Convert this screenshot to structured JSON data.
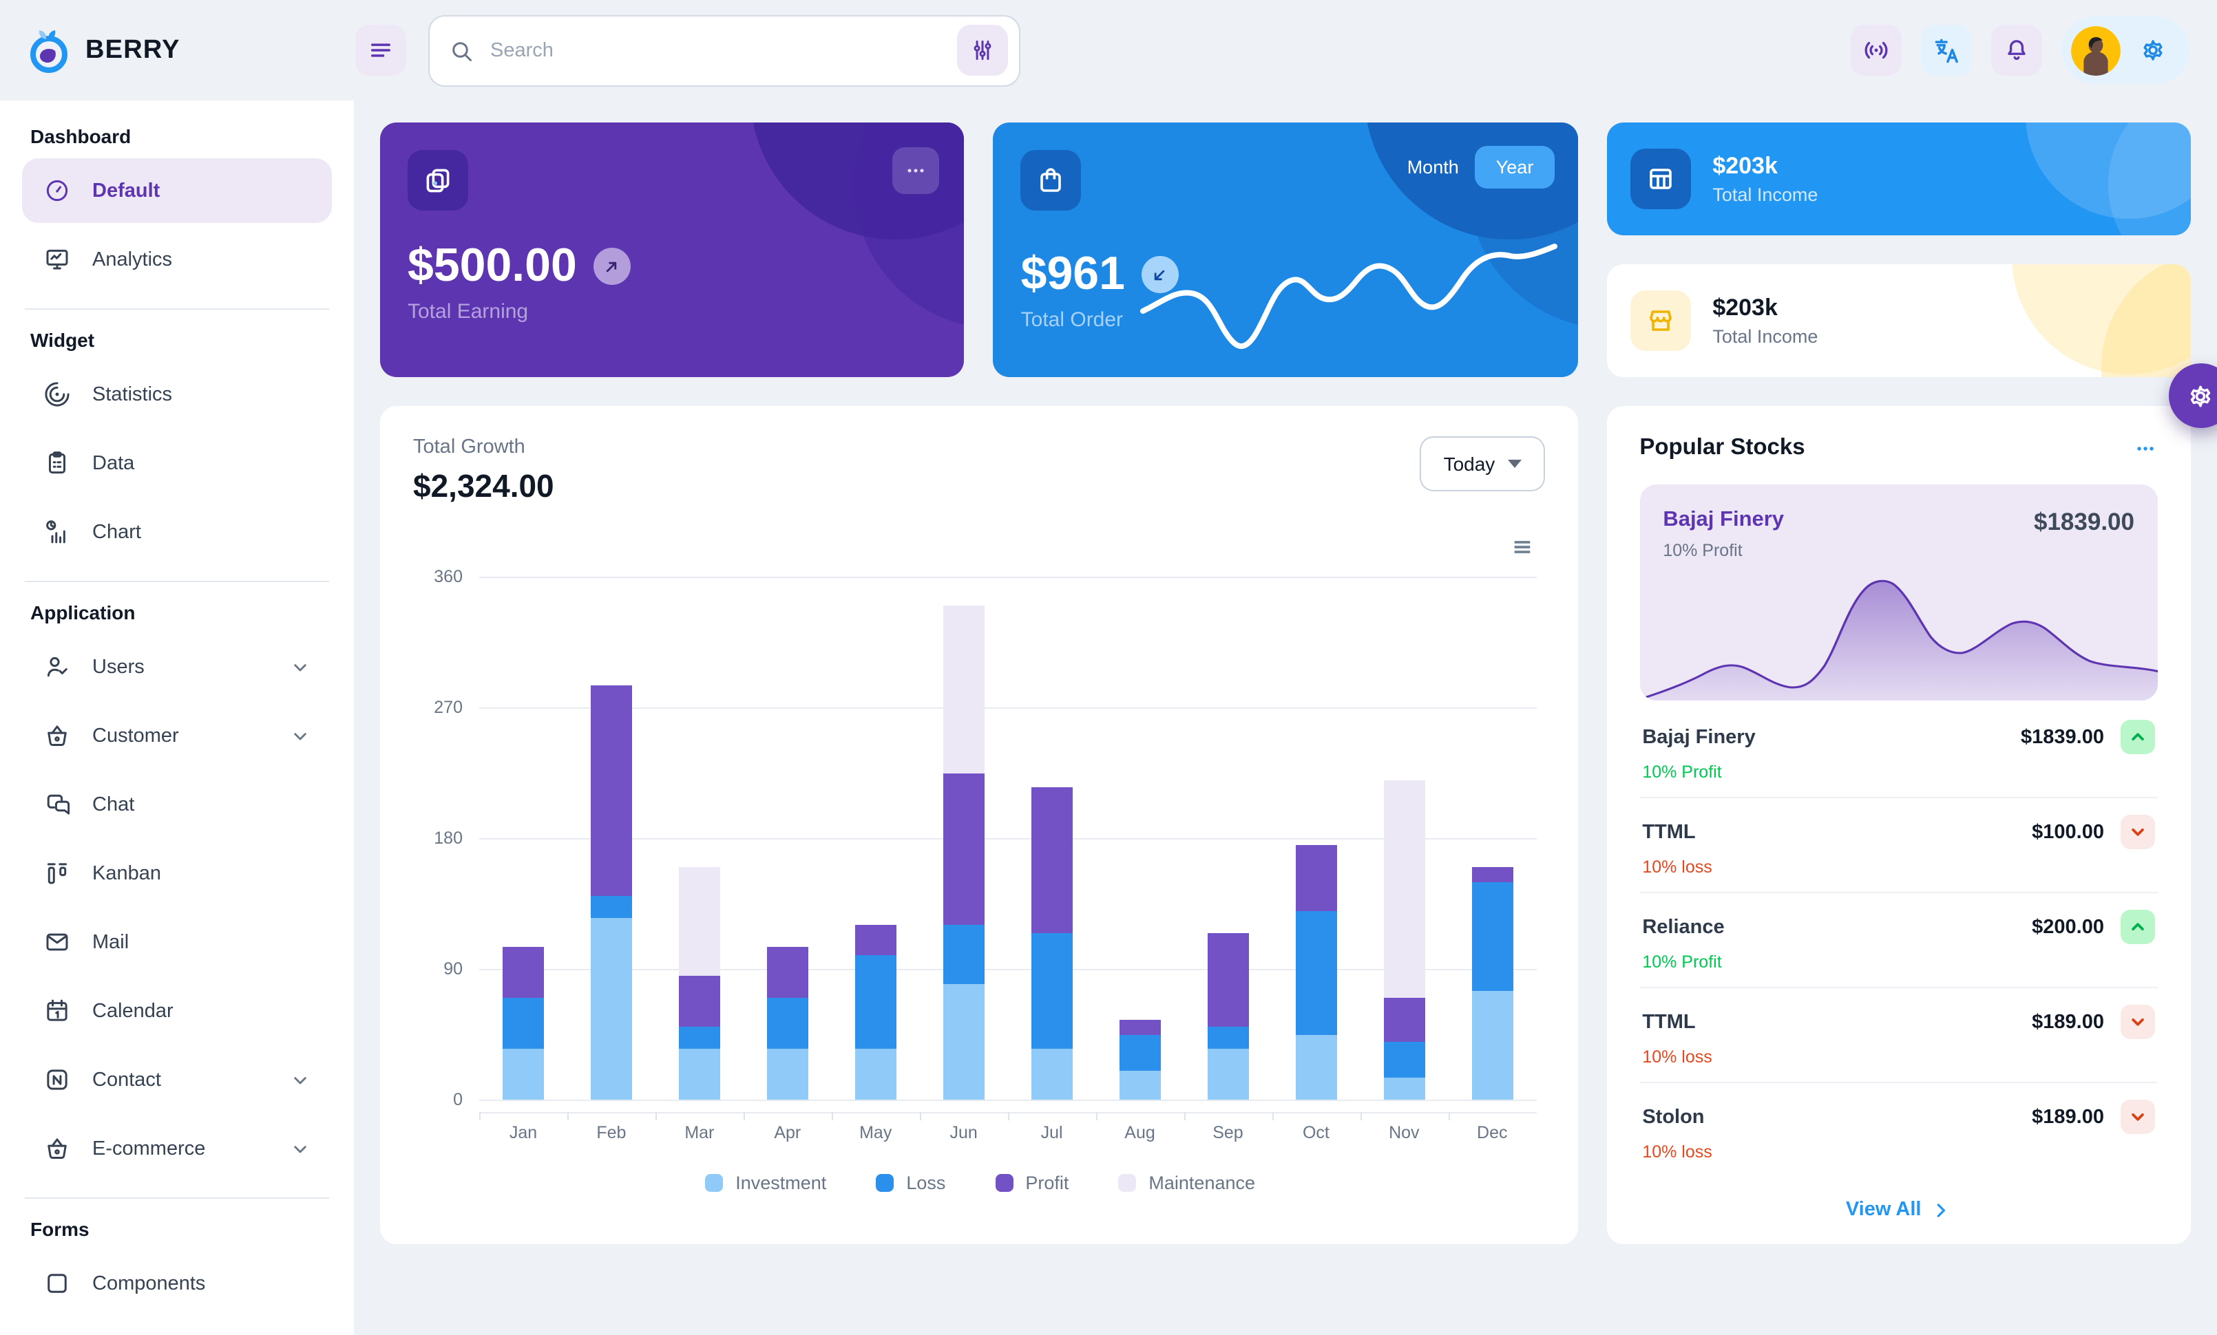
{
  "app": {
    "name": "BERRY"
  },
  "header": {
    "search_placeholder": "Search",
    "icons": [
      "menu-icon",
      "search-icon",
      "filter-icon",
      "broadcast-icon",
      "translate-icon",
      "bell-icon",
      "avatar",
      "gear-icon"
    ]
  },
  "sidebar": {
    "sections": [
      {
        "heading": "Dashboard",
        "items": [
          {
            "label": "Default",
            "icon": "gauge",
            "selected": true
          },
          {
            "label": "Analytics",
            "icon": "monitor"
          }
        ]
      },
      {
        "heading": "Widget",
        "items": [
          {
            "label": "Statistics",
            "icon": "rings"
          },
          {
            "label": "Data",
            "icon": "clipboard"
          },
          {
            "label": "Chart",
            "icon": "chart"
          }
        ]
      },
      {
        "heading": "Application",
        "items": [
          {
            "label": "Users",
            "icon": "user-check",
            "expandable": true
          },
          {
            "label": "Customer",
            "icon": "basket",
            "expandable": true
          },
          {
            "label": "Chat",
            "icon": "chat"
          },
          {
            "label": "Kanban",
            "icon": "kanban"
          },
          {
            "label": "Mail",
            "icon": "mail"
          },
          {
            "label": "Calendar",
            "icon": "calendar"
          },
          {
            "label": "Contact",
            "icon": "nfc",
            "expandable": true
          },
          {
            "label": "E-commerce",
            "icon": "basket",
            "expandable": true
          }
        ]
      },
      {
        "heading": "Forms",
        "items": [
          {
            "label": "Components",
            "icon": "box",
            "partial": true
          }
        ]
      }
    ]
  },
  "cards": {
    "total_earning": {
      "amount": "$500.00",
      "label": "Total Earning",
      "trend": "up"
    },
    "total_order": {
      "amount": "$961",
      "label": "Total Order",
      "trend": "down",
      "toggle": {
        "month_label": "Month",
        "year_label": "Year",
        "active": "Year"
      }
    },
    "income_primary": {
      "amount": "$203k",
      "label": "Total Income"
    },
    "income_secondary": {
      "amount": "$203k",
      "label": "Total Income"
    }
  },
  "growth": {
    "label": "Total Growth",
    "amount": "$2,324.00",
    "period": "Today"
  },
  "stocks": {
    "title": "Popular Stocks",
    "featured": {
      "name": "Bajaj Finery",
      "price": "$1839.00",
      "change": "10% Profit"
    },
    "rows": [
      {
        "name": "Bajaj Finery",
        "price": "$1839.00",
        "change": "10% Profit",
        "direction": "up"
      },
      {
        "name": "TTML",
        "price": "$100.00",
        "change": "10% loss",
        "direction": "down"
      },
      {
        "name": "Reliance",
        "price": "$200.00",
        "change": "10% Profit",
        "direction": "up"
      },
      {
        "name": "TTML",
        "price": "$189.00",
        "change": "10% loss",
        "direction": "down"
      },
      {
        "name": "Stolon",
        "price": "$189.00",
        "change": "10% loss",
        "direction": "down"
      }
    ],
    "view_all_label": "View All"
  },
  "colors": {
    "purple_dark": "#5e35b1",
    "purple_deep": "#4527a0",
    "purple_main": "#673ab7",
    "purple_light": "#ede7f6",
    "blue_dark": "#1e88e5",
    "blue_main": "#2196f3",
    "blue_deeper": "#1565c0",
    "blue_light": "#e3f2fd",
    "success": "#00c853",
    "error": "#d84315",
    "warning": "#f0b400",
    "page_bg": "#eef2f6"
  },
  "chart_data": [
    {
      "id": "total-growth-bar",
      "type": "bar",
      "stacked": true,
      "title": "Total Growth",
      "categories": [
        "Jan",
        "Feb",
        "Mar",
        "Apr",
        "May",
        "Jun",
        "Jul",
        "Aug",
        "Sep",
        "Oct",
        "Nov",
        "Dec"
      ],
      "series": [
        {
          "name": "Investment",
          "color": "#90caf9",
          "values": [
            35,
            125,
            35,
            35,
            35,
            80,
            35,
            20,
            35,
            45,
            15,
            75
          ]
        },
        {
          "name": "Loss",
          "color": "#2b90ec",
          "values": [
            35,
            15,
            15,
            35,
            65,
            40,
            80,
            25,
            15,
            85,
            25,
            75
          ]
        },
        {
          "name": "Profit",
          "color": "#7352c6",
          "values": [
            35,
            145,
            35,
            35,
            20,
            105,
            100,
            10,
            65,
            45,
            30,
            10
          ]
        },
        {
          "name": "Maintenance",
          "color": "#ece8f6",
          "values": [
            0,
            0,
            75,
            0,
            0,
            115,
            0,
            0,
            0,
            0,
            150,
            0
          ]
        }
      ],
      "ylim": [
        0,
        360
      ],
      "yticks": [
        0,
        90,
        180,
        270,
        360
      ],
      "grid": "horizontal",
      "legend_position": "bottom"
    },
    {
      "id": "total-order-sparkline",
      "type": "line",
      "note": "white sparkline on Total Order card, values estimated from pixels",
      "values": [
        45,
        52,
        38,
        20,
        42,
        55,
        48,
        62,
        70,
        52,
        68,
        75
      ]
    },
    {
      "id": "bajaj-finery-area",
      "type": "area",
      "note": "purple area sparkline on Popular Stocks card, values estimated from pixels",
      "values": [
        2,
        18,
        25,
        22,
        12,
        10,
        45,
        85,
        60,
        38,
        48,
        58,
        42,
        30,
        25
      ]
    }
  ]
}
